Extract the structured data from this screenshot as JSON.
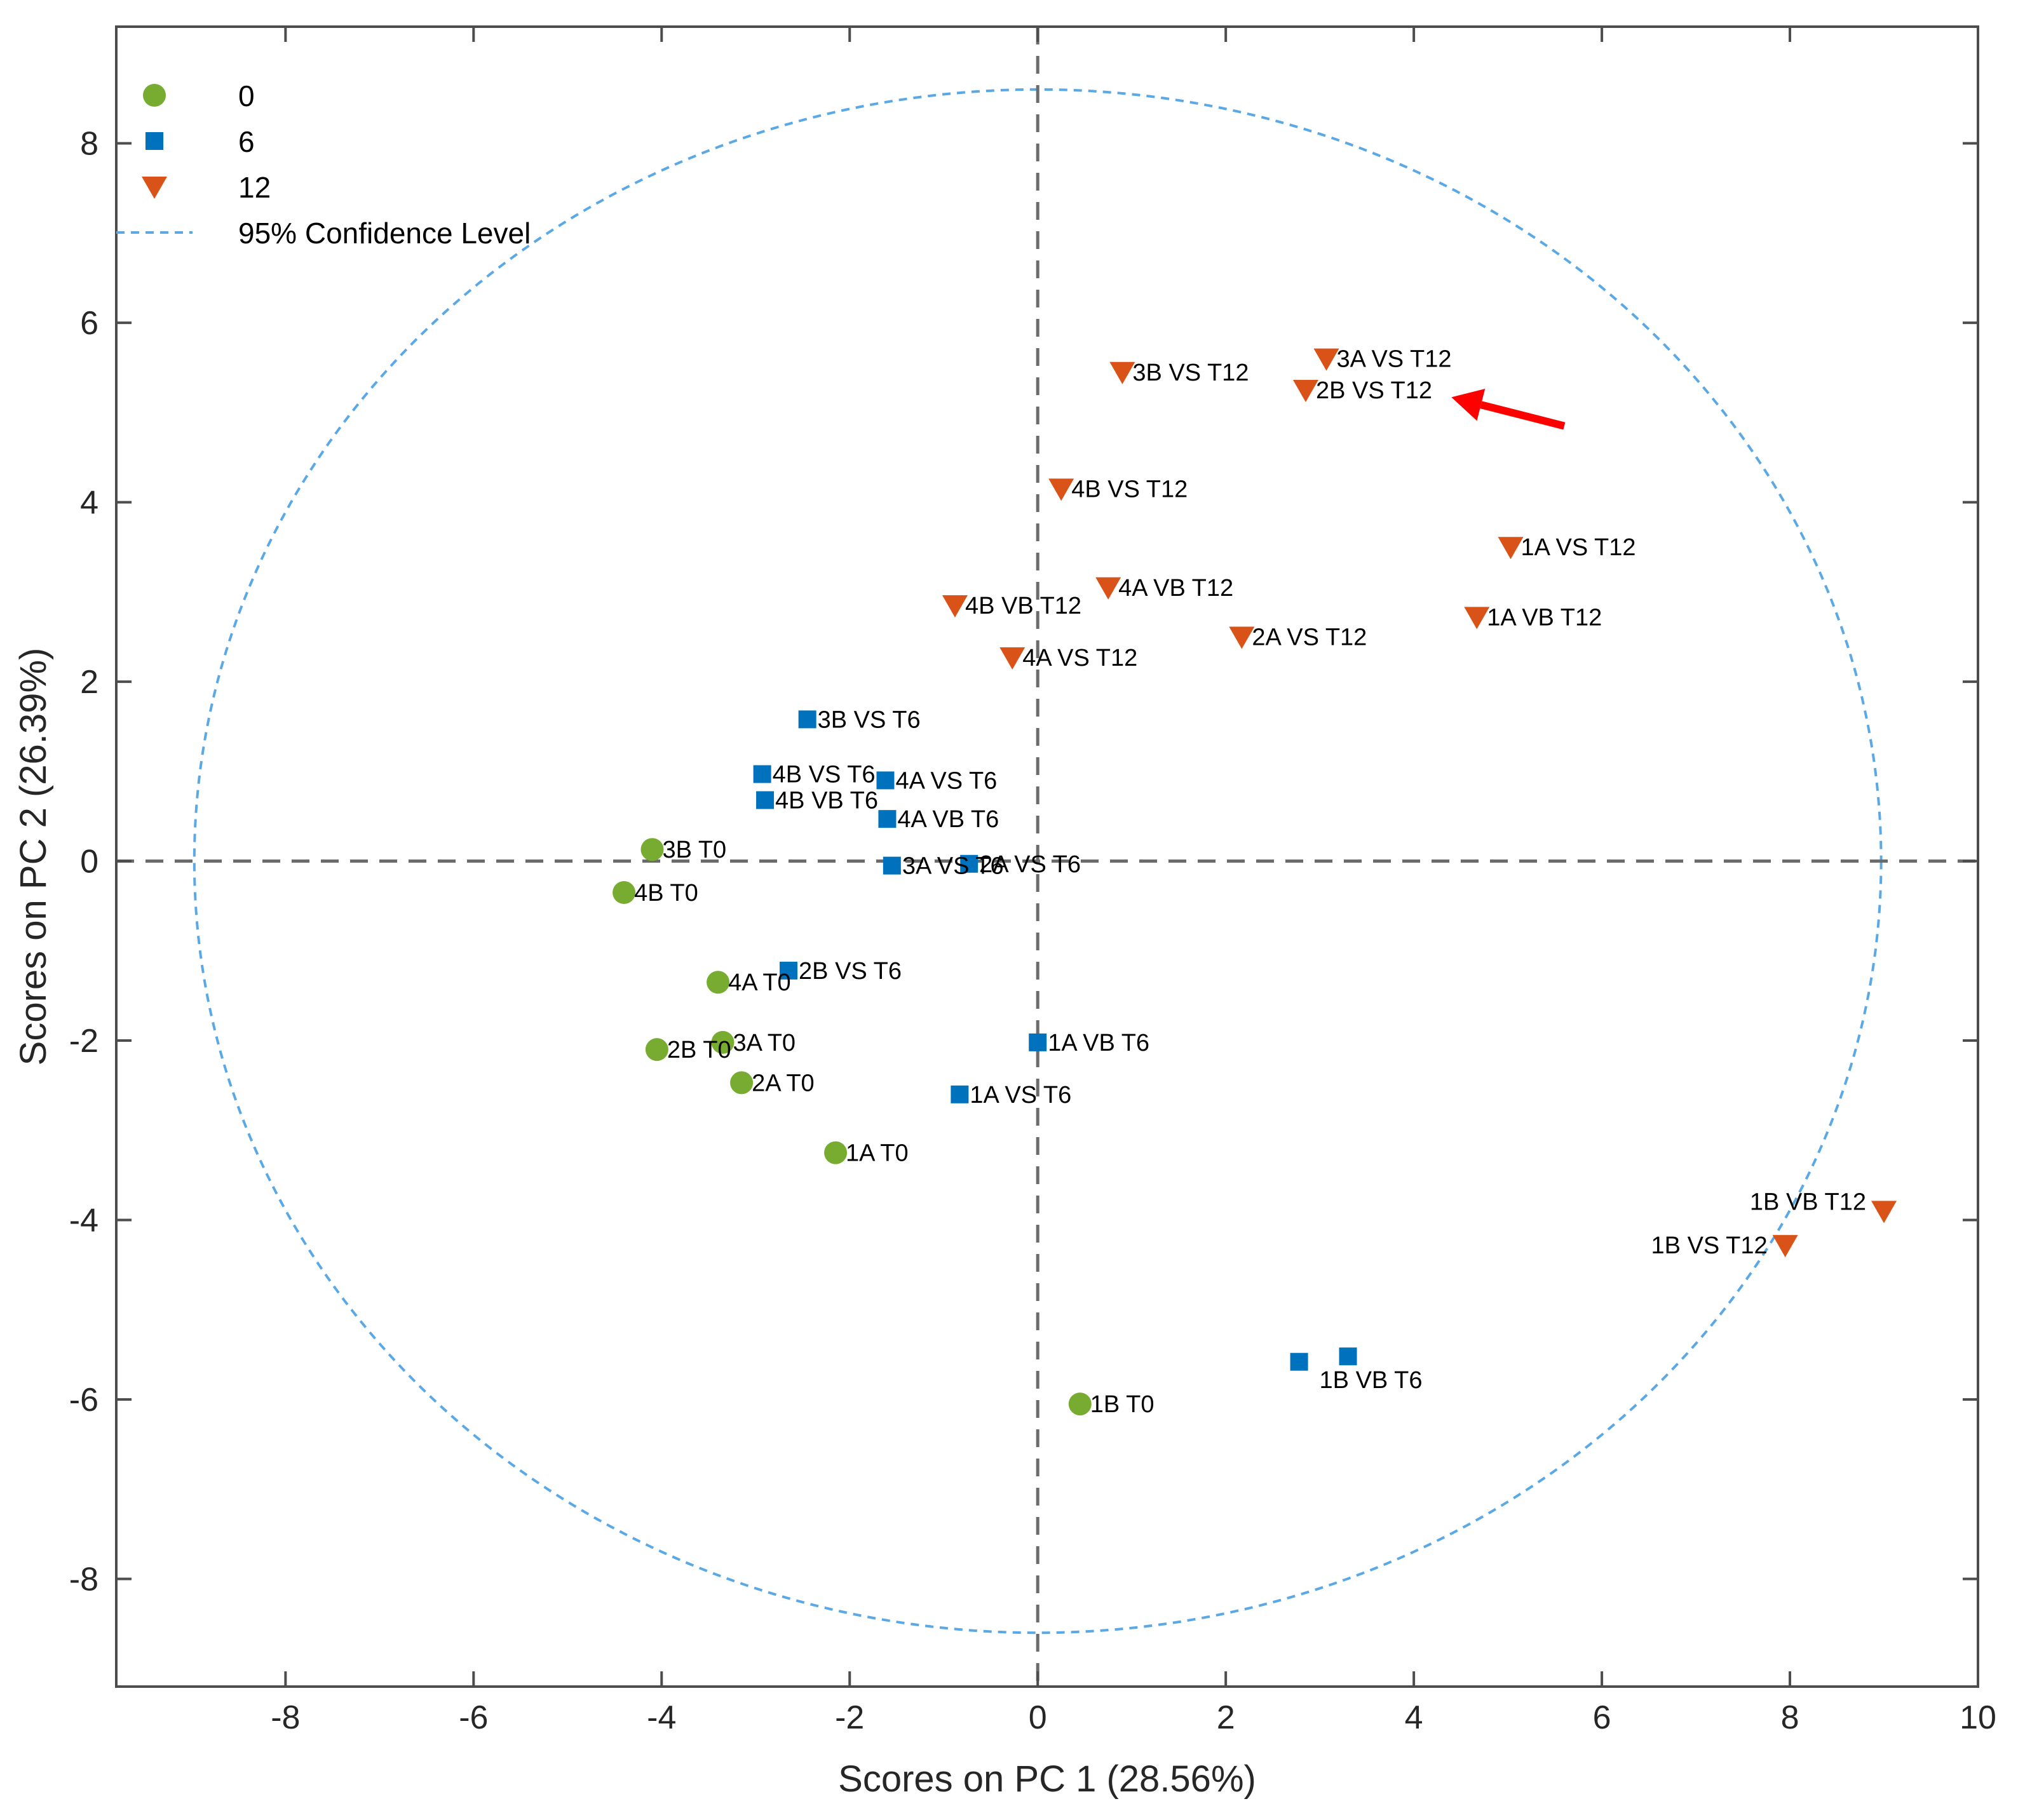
{
  "chart_data": {
    "type": "scatter",
    "xlabel": "Scores on PC 1 (28.56%)",
    "ylabel": "Scores on PC 2 (26.39%)",
    "xlim": [
      -9.8,
      10
    ],
    "ylim": [
      -9.2,
      9.3
    ],
    "x_ticks": [
      -8,
      -6,
      -4,
      -2,
      0,
      2,
      4,
      6,
      8,
      10
    ],
    "y_ticks": [
      -8,
      -6,
      -4,
      -2,
      0,
      2,
      4,
      6,
      8
    ],
    "x_tick_labels": [
      "-8",
      "-6",
      "-4",
      "-2",
      "0",
      "2",
      "4",
      "6",
      "8",
      "10"
    ],
    "y_tick_labels": [
      "-8",
      "-6",
      "-4",
      "-2",
      "0",
      "2",
      "4",
      "6",
      "8"
    ],
    "grid": false,
    "reference_lines": {
      "x": 0,
      "y": 0,
      "style": "dashed",
      "color": "#6b6b6b"
    },
    "confidence_ellipse": {
      "label": "95% Confidence Level",
      "center": [
        0,
        0
      ],
      "x_radius": 8.97,
      "y_radius": 8.6,
      "color": "#5aa9e6"
    },
    "legend": {
      "position": "top-left",
      "entries": [
        {
          "label": "0",
          "marker": "circle",
          "color": "#77ac30"
        },
        {
          "label": "6",
          "marker": "square",
          "color": "#0072bd"
        },
        {
          "label": "12",
          "marker": "triangle-down",
          "color": "#d95319"
        },
        {
          "label": "95% Confidence Level",
          "marker": "dashed-line",
          "color": "#5aa9e6"
        }
      ]
    },
    "series": [
      {
        "name": "0",
        "marker": "circle",
        "color": "#77ac30",
        "points": [
          {
            "label": "3B T0",
            "x": -4.1,
            "y": 0.13
          },
          {
            "label": "4B T0",
            "x": -4.4,
            "y": -0.35
          },
          {
            "label": "4A T0",
            "x": -3.4,
            "y": -1.35
          },
          {
            "label": "3A T0",
            "x": -3.35,
            "y": -2.02
          },
          {
            "label": "2B T0",
            "x": -4.05,
            "y": -2.1
          },
          {
            "label": "2A T0",
            "x": -3.15,
            "y": -2.47
          },
          {
            "label": "1A T0",
            "x": -2.15,
            "y": -3.25
          },
          {
            "label": "1B T0",
            "x": 0.45,
            "y": -6.05
          }
        ]
      },
      {
        "name": "6",
        "marker": "square",
        "color": "#0072bd",
        "points": [
          {
            "label": "3B VS T6",
            "x": -2.45,
            "y": 1.58
          },
          {
            "label": "4B VS T6",
            "x": -2.93,
            "y": 0.97
          },
          {
            "label": "4A VS T6",
            "x": -1.62,
            "y": 0.9
          },
          {
            "label": "4B VB T6",
            "x": -2.9,
            "y": 0.68
          },
          {
            "label": "4A VB T6",
            "x": -1.6,
            "y": 0.47
          },
          {
            "label": "3A VS T6",
            "x": -1.55,
            "y": -0.05
          },
          {
            "label": "2A VS T6",
            "x": -0.73,
            "y": -0.03
          },
          {
            "label": "2B VS T6",
            "x": -2.65,
            "y": -1.22
          },
          {
            "label": "1A VB T6",
            "x": 0.0,
            "y": -2.02
          },
          {
            "label": "1A VS T6",
            "x": -0.83,
            "y": -2.6
          },
          {
            "label": "",
            "x": 2.78,
            "y": -5.58
          },
          {
            "label": "1B VB T6",
            "x": 3.3,
            "y": -5.52
          }
        ]
      },
      {
        "name": "12",
        "marker": "triangle-down",
        "color": "#d95319",
        "points": [
          {
            "label": "3A VS T12",
            "x": 3.07,
            "y": 5.6
          },
          {
            "label": "3B VS T12",
            "x": 0.9,
            "y": 5.45
          },
          {
            "label": "2B VS T12",
            "x": 2.85,
            "y": 5.25
          },
          {
            "label": "4B VS T12",
            "x": 0.25,
            "y": 4.15
          },
          {
            "label": "1A VS T12",
            "x": 5.03,
            "y": 3.5
          },
          {
            "label": "4A VB T12",
            "x": 0.75,
            "y": 3.05
          },
          {
            "label": "4B VB T12",
            "x": -0.88,
            "y": 2.85
          },
          {
            "label": "1A VB T12",
            "x": 4.67,
            "y": 2.72
          },
          {
            "label": "2A VS T12",
            "x": 2.17,
            "y": 2.5
          },
          {
            "label": "4A VS T12",
            "x": -0.27,
            "y": 2.27
          },
          {
            "label": "1B VB T12",
            "x": 9.0,
            "y": -3.9
          },
          {
            "label": "1B VS T12",
            "x": 7.95,
            "y": -4.28
          }
        ]
      }
    ],
    "annotations": [
      {
        "type": "arrow",
        "color": "#ff0000",
        "points_to": "2B VS T12",
        "from": [
          5.6,
          4.85
        ],
        "to": [
          4.4,
          5.17
        ]
      }
    ]
  }
}
